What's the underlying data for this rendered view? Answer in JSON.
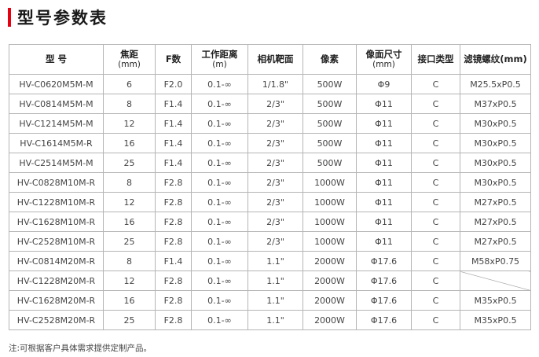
{
  "title": "型号参数表",
  "note": "注:可根据客户具体需求提供定制产品。",
  "table": {
    "headers": [
      {
        "label": "型 号",
        "sub": ""
      },
      {
        "label": "焦距",
        "sub": "(mm)"
      },
      {
        "label": "F数",
        "sub": ""
      },
      {
        "label": "工作距离",
        "sub": "(m)"
      },
      {
        "label": "相机靶面",
        "sub": ""
      },
      {
        "label": "像素",
        "sub": ""
      },
      {
        "label": "像面尺寸",
        "sub": "(mm)"
      },
      {
        "label": "接口类型",
        "sub": ""
      },
      {
        "label": "滤镜螺纹(mm)",
        "sub": ""
      }
    ],
    "rows": [
      [
        "HV-C0620M5M-M",
        "6",
        "F2.0",
        "0.1-∞",
        "1/1.8\"",
        "500W",
        "Φ9",
        "C",
        "M25.5xP0.5"
      ],
      [
        "HV-C0814M5M-M",
        "8",
        "F1.4",
        "0.1-∞",
        "2/3\"",
        "500W",
        "Φ11",
        "C",
        "M37xP0.5"
      ],
      [
        "HV-C1214M5M-M",
        "12",
        "F1.4",
        "0.1-∞",
        "2/3\"",
        "500W",
        "Φ11",
        "C",
        "M30xP0.5"
      ],
      [
        "HV-C1614M5M-R",
        "16",
        "F1.4",
        "0.1-∞",
        "2/3\"",
        "500W",
        "Φ11",
        "C",
        "M30xP0.5"
      ],
      [
        "HV-C2514M5M-M",
        "25",
        "F1.4",
        "0.1-∞",
        "2/3\"",
        "500W",
        "Φ11",
        "C",
        "M30xP0.5"
      ],
      [
        "HV-C0828M10M-R",
        "8",
        "F2.8",
        "0.1-∞",
        "2/3\"",
        "1000W",
        "Φ11",
        "C",
        "M30xP0.5"
      ],
      [
        "HV-C1228M10M-R",
        "12",
        "F2.8",
        "0.1-∞",
        "2/3\"",
        "1000W",
        "Φ11",
        "C",
        "M27xP0.5"
      ],
      [
        "HV-C1628M10M-R",
        "16",
        "F2.8",
        "0.1-∞",
        "2/3\"",
        "1000W",
        "Φ11",
        "C",
        "M27xP0.5"
      ],
      [
        "HV-C2528M10M-R",
        "25",
        "F2.8",
        "0.1-∞",
        "2/3\"",
        "1000W",
        "Φ11",
        "C",
        "M27xP0.5"
      ],
      [
        "HV-C0814M20M-R",
        "8",
        "F1.4",
        "0.1-∞",
        "1.1\"",
        "2000W",
        "Φ17.6",
        "C",
        "M58xP0.75"
      ],
      [
        "HV-C1228M20M-R",
        "12",
        "F2.8",
        "0.1-∞",
        "1.1\"",
        "2000W",
        "Φ17.6",
        "C",
        ""
      ],
      [
        "HV-C1628M20M-R",
        "16",
        "F2.8",
        "0.1-∞",
        "1.1\"",
        "2000W",
        "Φ17.6",
        "C",
        "M35xP0.5"
      ],
      [
        "HV-C2528M20M-R",
        "25",
        "F2.8",
        "0.1-∞",
        "1.1\"",
        "2000W",
        "Φ17.6",
        "C",
        "M35xP0.5"
      ]
    ]
  },
  "colors": {
    "accent": "#e60012",
    "border": "#b5b5b5"
  }
}
